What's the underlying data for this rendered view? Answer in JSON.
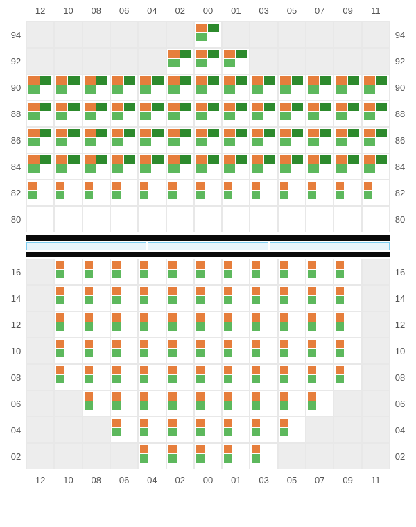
{
  "colors": {
    "orange": "#e67e3c",
    "darkgreen": "#2d8a2d",
    "green": "#5db85d",
    "cell_empty": "#ededed",
    "cell_white": "#ffffff",
    "grid_line": "#e8e8e8",
    "label_text": "#555555",
    "divider_dark": "#0a0a0a",
    "divider_light_fill": "#e8f5fc",
    "divider_light_border": "#7dcdf0"
  },
  "label_fontsize": 13,
  "col_labels": [
    "12",
    "10",
    "08",
    "06",
    "04",
    "02",
    "00",
    "01",
    "03",
    "05",
    "07",
    "09",
    "11"
  ],
  "section_a": {
    "row_labels": [
      "94",
      "92",
      "90",
      "88",
      "86",
      "84",
      "82",
      "80"
    ],
    "rows": 8,
    "cols": 13,
    "cell_pattern_4": [
      "orange",
      "darkgreen",
      "green",
      ""
    ],
    "cell_pattern_2v": [
      "orange",
      "green"
    ],
    "cells": [
      [
        null,
        null,
        null,
        null,
        null,
        null,
        "4",
        null,
        null,
        null,
        null,
        null,
        null
      ],
      [
        null,
        null,
        null,
        null,
        null,
        "4",
        "4",
        "4",
        null,
        null,
        null,
        null,
        null
      ],
      [
        "4",
        "4",
        "4",
        "4",
        "4",
        "4",
        "4",
        "4",
        "4",
        "4",
        "4",
        "4",
        "4"
      ],
      [
        "4",
        "4",
        "4",
        "4",
        "4",
        "4",
        "4",
        "4",
        "4",
        "4",
        "4",
        "4",
        "4"
      ],
      [
        "4",
        "4",
        "4",
        "4",
        "4",
        "4",
        "4",
        "4",
        "4",
        "4",
        "4",
        "4",
        "4"
      ],
      [
        "4",
        "4",
        "4",
        "4",
        "4",
        "4",
        "4",
        "4",
        "4",
        "4",
        "4",
        "4",
        "4"
      ],
      [
        "2",
        "2",
        "2",
        "2",
        "2",
        "2",
        "2",
        "2",
        "2",
        "2",
        "2",
        "2",
        "2"
      ],
      [
        "w",
        "w",
        "w",
        "w",
        "w",
        "w",
        "w",
        "w",
        "w",
        "w",
        "w",
        "w",
        "w"
      ]
    ]
  },
  "divider_light_segments": 3,
  "section_b": {
    "row_labels": [
      "16",
      "14",
      "12",
      "10",
      "08",
      "06",
      "04",
      "02"
    ],
    "rows": 8,
    "cols": 13,
    "cell_pattern_2v": [
      "orange",
      "green"
    ],
    "cells": [
      [
        null,
        "2",
        "2",
        "2",
        "2",
        "2",
        "2",
        "2",
        "2",
        "2",
        "2",
        "2",
        null
      ],
      [
        null,
        "2",
        "2",
        "2",
        "2",
        "2",
        "2",
        "2",
        "2",
        "2",
        "2",
        "2",
        null
      ],
      [
        null,
        "2",
        "2",
        "2",
        "2",
        "2",
        "2",
        "2",
        "2",
        "2",
        "2",
        "2",
        null
      ],
      [
        null,
        "2",
        "2",
        "2",
        "2",
        "2",
        "2",
        "2",
        "2",
        "2",
        "2",
        "2",
        null
      ],
      [
        null,
        "2",
        "2",
        "2",
        "2",
        "2",
        "2",
        "2",
        "2",
        "2",
        "2",
        "2",
        null
      ],
      [
        null,
        null,
        "2",
        "2",
        "2",
        "2",
        "2",
        "2",
        "2",
        "2",
        "2",
        null,
        null
      ],
      [
        null,
        null,
        null,
        "2",
        "2",
        "2",
        "2",
        "2",
        "2",
        "2",
        null,
        null,
        null
      ],
      [
        null,
        null,
        null,
        null,
        "2",
        "2",
        "2",
        "2",
        "2",
        null,
        null,
        null,
        null
      ]
    ]
  }
}
